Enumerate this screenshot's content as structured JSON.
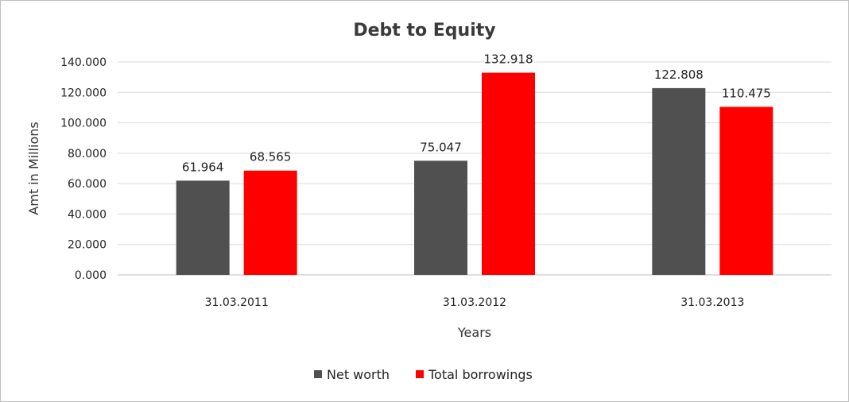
{
  "chart_data": {
    "type": "bar",
    "title": "Debt to Equity",
    "xlabel": "Years",
    "ylabel": "Amt in Millions",
    "categories": [
      "31.03.2011",
      "31.03.2012",
      "31.03.2013"
    ],
    "series": [
      {
        "name": "Net worth",
        "color": "#505050",
        "values": [
          61.964,
          75.047,
          122.808
        ],
        "labels": [
          "61.964",
          "75.047",
          "122.808"
        ]
      },
      {
        "name": "Total borrowings",
        "color": "#ff0000",
        "values": [
          68.565,
          132.918,
          110.475
        ],
        "labels": [
          "68.565",
          "132.918",
          "110.475"
        ]
      }
    ],
    "ylim": [
      0,
      140
    ],
    "yticks": [
      0,
      20,
      40,
      60,
      80,
      100,
      120,
      140
    ],
    "ytick_labels": [
      "0.000",
      "20.000",
      "40.000",
      "60.000",
      "80.000",
      "100.000",
      "120.000",
      "140.000"
    ],
    "grid": true,
    "legend": "bottom",
    "colors": {
      "gridline": "#d9d9d9",
      "axis": "#bfbfbf",
      "border": "#bfbfbf"
    }
  }
}
